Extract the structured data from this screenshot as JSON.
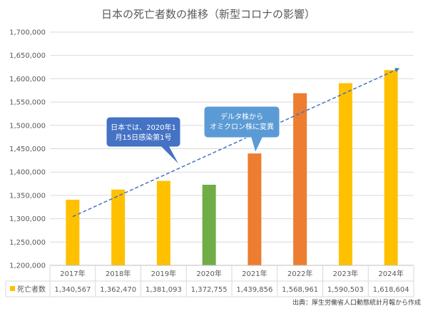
{
  "chart_data": {
    "type": "bar",
    "title": "日本の死亡者数の推移（新型コロナの影響）",
    "categories": [
      "2017年",
      "2018年",
      "2019年",
      "2020年",
      "2021年",
      "2022年",
      "2023年",
      "2024年"
    ],
    "series": [
      {
        "name": "死亡者数",
        "values": [
          1340567,
          1362470,
          1381093,
          1372755,
          1439856,
          1568961,
          1590503,
          1618604
        ],
        "value_labels": [
          "1,340,567",
          "1,362,470",
          "1,381,093",
          "1,372,755",
          "1,439,856",
          "1,568,961",
          "1,590,503",
          "1,618,604"
        ],
        "colors": [
          "#FFC000",
          "#FFC000",
          "#FFC000",
          "#70AD47",
          "#ED7D31",
          "#ED7D31",
          "#FFC000",
          "#FFC000"
        ],
        "legend_color": "#FFC000"
      }
    ],
    "ylim": [
      1200000,
      1700000
    ],
    "yticks": [
      1200000,
      1250000,
      1300000,
      1350000,
      1400000,
      1450000,
      1500000,
      1550000,
      1600000,
      1650000,
      1700000
    ],
    "ytick_labels": [
      "1,200,000",
      "1,250,000",
      "1,300,000",
      "1,350,000",
      "1,400,000",
      "1,450,000",
      "1,500,000",
      "1,550,000",
      "1,600,000",
      "1,650,000",
      "1,700,000"
    ],
    "grid": true,
    "trendline": {
      "type": "linear",
      "color": "#4472C4",
      "style": "dashed"
    },
    "data_table": true,
    "annotations": [
      {
        "lines": [
          "日本では、2020年1",
          "月15日感染第1号"
        ],
        "color": "#4472C4"
      },
      {
        "lines": [
          "デルタ株から",
          "オミクロン株に変異"
        ],
        "color": "#5B9BD5"
      }
    ],
    "source": "出典：厚生労働省人口動態統計月報から作成"
  }
}
